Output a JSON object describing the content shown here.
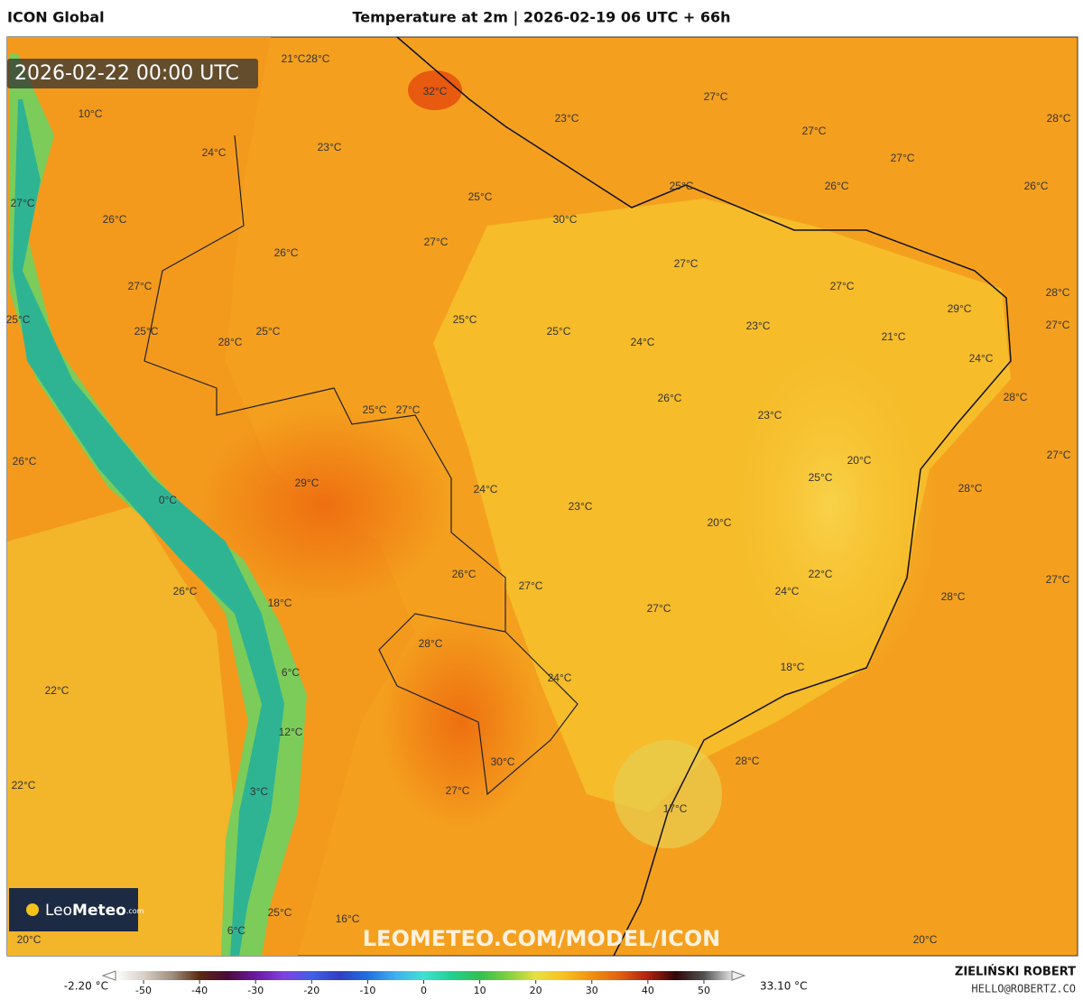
{
  "header": {
    "model": "ICON Global",
    "title": "Temperature at 2m | 2026-02-19 06 UTC + 66h"
  },
  "map": {
    "timestamp": "2026-02-22 00:00 UTC",
    "labels": [
      "21°C",
      "28°C",
      "32°C",
      "10°C",
      "23°C",
      "27°C",
      "28°C",
      "27°C",
      "24°C",
      "23°C",
      "27°C",
      "25°C",
      "26°C",
      "26°C",
      "25°C",
      "27°C",
      "26°C",
      "30°C",
      "27°C",
      "26°C",
      "27°C",
      "27°C",
      "27°C",
      "28°C",
      "29°C",
      "25°C",
      "25°C",
      "23°C",
      "27°C",
      "25°C",
      "25°C",
      "25°C",
      "21°C",
      "28°C",
      "24°C",
      "24°C",
      "28°C",
      "26°C",
      "25°C",
      "27°C",
      "23°C",
      "27°C",
      "26°C",
      "20°C",
      "25°C",
      "29°C",
      "28°C",
      "24°C",
      "0°C",
      "23°C",
      "20°C",
      "26°C",
      "22°C",
      "27°C",
      "27°C",
      "26°C",
      "24°C",
      "28°C",
      "18°C",
      "27°C",
      "28°C",
      "18°C",
      "6°C",
      "24°C",
      "22°C",
      "12°C",
      "28°C",
      "30°C",
      "22°C",
      "27°C",
      "3°C",
      "17°C",
      "25°C",
      "16°C",
      "20°C",
      "6°C",
      "20°C"
    ],
    "watermark": "LEOMETEO.COM/MODEL/ICON",
    "logo": {
      "leo": "Leo",
      "meteo": "Meteo",
      "suffix": ".com"
    }
  },
  "colorbar": {
    "min_label": "-2.20 °C",
    "max_label": "33.10 °C",
    "range": [
      -55,
      55
    ],
    "ticks": [
      -50,
      -40,
      -30,
      -20,
      -10,
      0,
      10,
      20,
      30,
      40,
      50
    ]
  },
  "footer": {
    "author": "ZIELIŃSKI ROBERT",
    "email": "HELLO@ROBERTZ.CO"
  }
}
